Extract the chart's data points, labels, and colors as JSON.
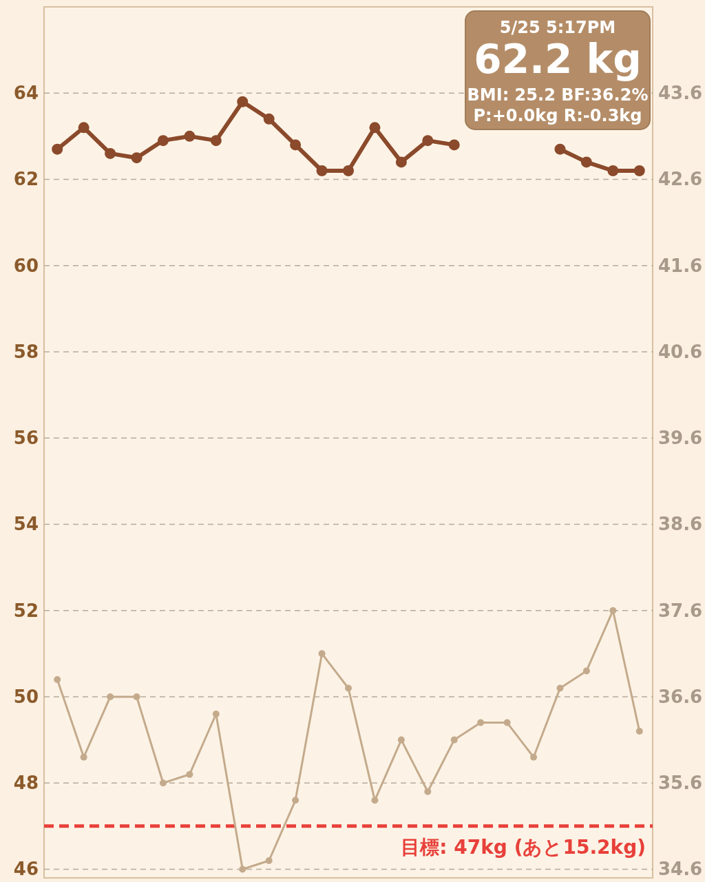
{
  "chart_data": {
    "type": "line",
    "categories": [
      null,
      null,
      null,
      null,
      null,
      null,
      null,
      null,
      null,
      null,
      null,
      null,
      null,
      null,
      null,
      null,
      null,
      null,
      null,
      null,
      null,
      null,
      null
    ],
    "series": [
      {
        "color": "#8b4a2b",
        "values": [
          62.7,
          63.2,
          62.6,
          62.5,
          62.9,
          63.0,
          62.9,
          63.8,
          63.4,
          62.8,
          62.2,
          62.2,
          63.2,
          62.4,
          62.9,
          62.8,
          null,
          null,
          null,
          62.7,
          62.4,
          62.2,
          62.2
        ]
      },
      {
        "color": "#c4aa8c",
        "axis": "y2",
        "values": [
          36.8,
          35.9,
          36.6,
          36.6,
          35.6,
          35.7,
          36.4,
          34.6,
          34.7,
          35.4,
          37.1,
          36.7,
          35.4,
          36.1,
          35.5,
          36.1,
          36.3,
          36.3,
          35.9,
          36.7,
          36.9,
          37.6,
          36.2
        ]
      }
    ],
    "ylim": [
      45.8,
      66
    ],
    "yticks": [
      46,
      48,
      50,
      52,
      54,
      56,
      58,
      60,
      62,
      64
    ],
    "y2lim": [
      34.5,
      44.6
    ],
    "y2ticks": [
      34.6,
      35.6,
      36.6,
      37.6,
      38.6,
      39.6,
      40.6,
      41.6,
      42.6,
      43.6
    ],
    "grid": "y",
    "marker": "circle",
    "line_style": "solid",
    "ref_lines": [
      {
        "axis": "y",
        "value": 47,
        "label": "目標: 47kg (あと15.2kg)",
        "color": "#e8403a",
        "line_style": "dashed"
      }
    ],
    "annotations": [
      "5/25 5:17PM",
      "62.2 kg",
      "BMI: 25.2  BF:36.2%",
      "P:+0.0kg  R:-0.3kg"
    ]
  }
}
